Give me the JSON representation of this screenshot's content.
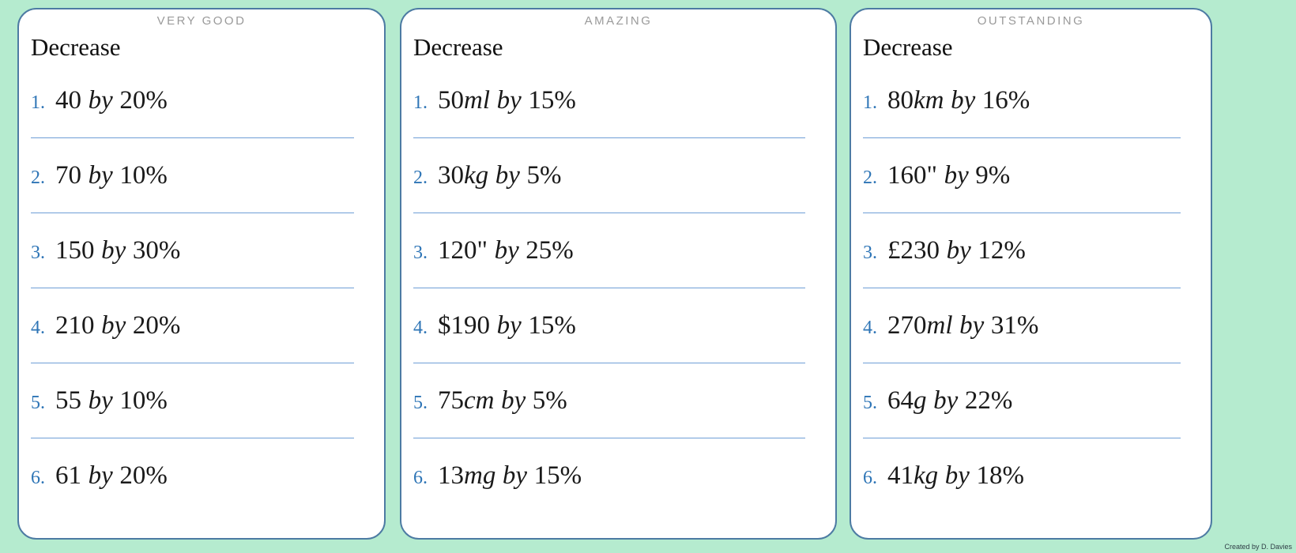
{
  "colors": {
    "background": "#b5ebcf",
    "card_background": "#ffffff",
    "card_border": "#4d7ba3",
    "badge_gray": "#9a9a9a",
    "number_blue": "#2e75b6",
    "separator_blue": "#6f9ed6",
    "text": "#1a1a1a"
  },
  "by_word": "by",
  "footer_credit": "Created by D. Davies",
  "cards": [
    {
      "badge": "VERY GOOD",
      "title": "Decrease",
      "items": [
        {
          "number": "1.",
          "prefix": "",
          "value": "40",
          "unit": "",
          "unit_italic": false,
          "percent": "20%"
        },
        {
          "number": "2.",
          "prefix": "",
          "value": "70",
          "unit": "",
          "unit_italic": false,
          "percent": "10%"
        },
        {
          "number": "3.",
          "prefix": "",
          "value": "150",
          "unit": "",
          "unit_italic": false,
          "percent": "30%"
        },
        {
          "number": "4.",
          "prefix": "",
          "value": "210",
          "unit": "",
          "unit_italic": false,
          "percent": "20%"
        },
        {
          "number": "5.",
          "prefix": "",
          "value": "55",
          "unit": "",
          "unit_italic": false,
          "percent": "10%"
        },
        {
          "number": "6.",
          "prefix": "",
          "value": "61",
          "unit": "",
          "unit_italic": false,
          "percent": "20%"
        }
      ]
    },
    {
      "badge": "AMAZING",
      "title": "Decrease",
      "items": [
        {
          "number": "1.",
          "prefix": "",
          "value": "50",
          "unit": "ml",
          "unit_italic": true,
          "percent": "15%"
        },
        {
          "number": "2.",
          "prefix": "",
          "value": "30",
          "unit": "kg",
          "unit_italic": true,
          "percent": "5%"
        },
        {
          "number": "3.",
          "prefix": "",
          "value": "120",
          "unit": "\"",
          "unit_italic": false,
          "percent": "25%"
        },
        {
          "number": "4.",
          "prefix": "$",
          "value": "190",
          "unit": "",
          "unit_italic": false,
          "percent": "15%"
        },
        {
          "number": "5.",
          "prefix": "",
          "value": "75",
          "unit": "cm",
          "unit_italic": true,
          "percent": "5%"
        },
        {
          "number": "6.",
          "prefix": "",
          "value": "13",
          "unit": "mg",
          "unit_italic": true,
          "percent": "15%"
        }
      ]
    },
    {
      "badge": "OUTSTANDING",
      "title": "Decrease",
      "items": [
        {
          "number": "1.",
          "prefix": "",
          "value": "80",
          "unit": "km",
          "unit_italic": true,
          "percent": "16%"
        },
        {
          "number": "2.",
          "prefix": "",
          "value": "160",
          "unit": "\"",
          "unit_italic": false,
          "percent": "9%"
        },
        {
          "number": "3.",
          "prefix": "£",
          "value": "230",
          "unit": "",
          "unit_italic": false,
          "percent": "12%"
        },
        {
          "number": "4.",
          "prefix": "",
          "value": "270",
          "unit": "ml",
          "unit_italic": true,
          "percent": "31%"
        },
        {
          "number": "5.",
          "prefix": "",
          "value": "64",
          "unit": "g",
          "unit_italic": true,
          "percent": "22%"
        },
        {
          "number": "6.",
          "prefix": "",
          "value": "41",
          "unit": "kg",
          "unit_italic": true,
          "percent": "18%"
        }
      ]
    }
  ]
}
